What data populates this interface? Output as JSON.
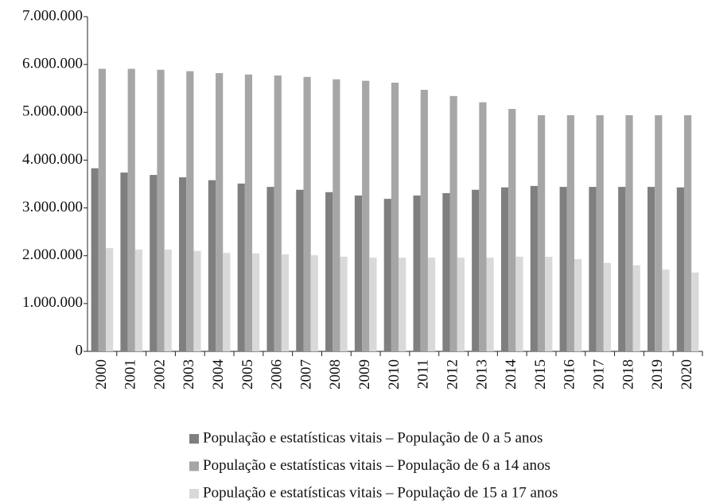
{
  "chart_data": {
    "type": "bar",
    "categories": [
      "2000",
      "2001",
      "2002",
      "2003",
      "2004",
      "2005",
      "2006",
      "2007",
      "2008",
      "2009",
      "2010",
      "2011",
      "2012",
      "2013",
      "2014",
      "2015",
      "2016",
      "2017",
      "2018",
      "2019",
      "2020"
    ],
    "series": [
      {
        "name": "População e estatísticas vitais – População de 0 a 5 anos",
        "color": "#7f7f7f",
        "values": [
          3830000,
          3740000,
          3690000,
          3640000,
          3580000,
          3510000,
          3440000,
          3380000,
          3330000,
          3260000,
          3190000,
          3260000,
          3310000,
          3380000,
          3430000,
          3460000,
          3440000,
          3440000,
          3440000,
          3440000,
          3430000
        ]
      },
      {
        "name": "População e estatísticas vitais – População de 6 a 14 anos",
        "color": "#a6a6a6",
        "values": [
          5910000,
          5910000,
          5890000,
          5860000,
          5820000,
          5790000,
          5770000,
          5740000,
          5690000,
          5660000,
          5620000,
          5470000,
          5340000,
          5210000,
          5070000,
          4940000,
          4940000,
          4940000,
          4940000,
          4940000,
          4940000
        ]
      },
      {
        "name": "População e estatísticas vitais – População de 15 a 17 anos",
        "color": "#d9d9d9",
        "values": [
          2160000,
          2130000,
          2130000,
          2100000,
          2060000,
          2050000,
          2030000,
          2010000,
          1980000,
          1960000,
          1960000,
          1960000,
          1960000,
          1960000,
          1980000,
          1980000,
          1930000,
          1850000,
          1800000,
          1710000,
          1650000
        ]
      }
    ],
    "ylim": [
      0,
      7000000
    ],
    "yticks": [
      0,
      {
        "value": 1000000,
        "label": "1.000.000"
      },
      {
        "value": 2000000,
        "label": "2.000.000"
      },
      {
        "value": 3000000,
        "label": "3.000.000"
      },
      {
        "value": 4000000,
        "label": "4.000.000"
      },
      {
        "value": 5000000,
        "label": "5.000.000"
      },
      {
        "value": 6000000,
        "label": "6.000.000"
      },
      {
        "value": 7000000,
        "label": "7.000.000"
      }
    ],
    "grid": false
  }
}
